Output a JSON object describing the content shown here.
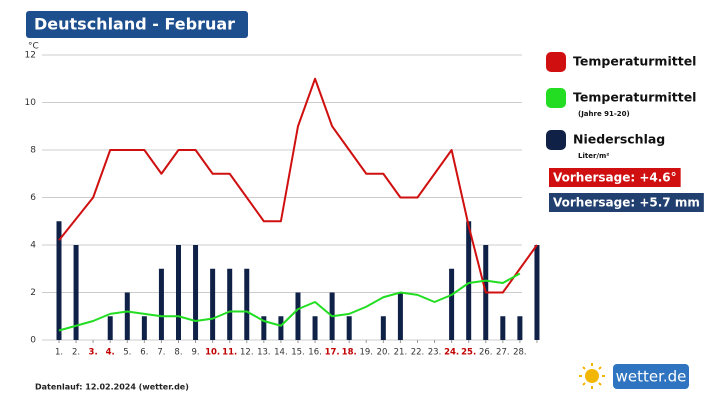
{
  "chart_data": {
    "type": "bar-line",
    "title": "Deutschland - Februar",
    "y_unit": "°C",
    "categories": [
      "1.",
      "2.",
      "3.",
      "4.",
      "5.",
      "6.",
      "7.",
      "8.",
      "9.",
      "10.",
      "11.",
      "12.",
      "13.",
      "14.",
      "15.",
      "16.",
      "17.",
      "18.",
      "19.",
      "20.",
      "21.",
      "22.",
      "23.",
      "24.",
      "25.",
      "26.",
      "27.",
      "28.",
      null
    ],
    "highlight": [
      2,
      3,
      9,
      10,
      16,
      17,
      23,
      24
    ],
    "highlight_color": "#c00000",
    "series": [
      {
        "name": "Niederschlag",
        "subtitle": "Liter/m²",
        "kind": "bar",
        "color": "#0f2147",
        "values": [
          5,
          4,
          0,
          1,
          2,
          1,
          3,
          4,
          4,
          3,
          3,
          3,
          1,
          1,
          2,
          1,
          2,
          1,
          0,
          1,
          2,
          0,
          0,
          3,
          5,
          4,
          1,
          1,
          4
        ]
      },
      {
        "name": "Temperaturmittel",
        "kind": "line",
        "color": "#d01010",
        "values": [
          4.2,
          5.1,
          6,
          8,
          8,
          8,
          7,
          8,
          8,
          7,
          7,
          6,
          5,
          5,
          9,
          11,
          9,
          8,
          7,
          7,
          6,
          6,
          7,
          8,
          4.8,
          2,
          2,
          3,
          4
        ]
      },
      {
        "name": "Temperaturmittel",
        "subtitle": "(Jahre 91-20)",
        "kind": "line",
        "color": "#22dd22",
        "values": [
          0.4,
          0.6,
          0.8,
          1.1,
          1.2,
          1.1,
          1.0,
          1.0,
          0.8,
          0.9,
          1.2,
          1.2,
          0.8,
          0.6,
          1.3,
          1.6,
          1.0,
          1.1,
          1.4,
          1.8,
          2.0,
          1.9,
          1.6,
          1.9,
          2.4,
          2.5,
          2.4,
          2.8,
          null
        ]
      }
    ],
    "legend_order": [
      1,
      2,
      0
    ],
    "ylim": [
      0,
      12
    ],
    "yticks": [
      0,
      2,
      4,
      6,
      8,
      10,
      12
    ],
    "grid": true,
    "badges": [
      {
        "text": "Vorhersage: +4.6°",
        "color": "#d01010"
      },
      {
        "text": "Vorhersage: +5.7 mm",
        "color": "#22406f"
      }
    ],
    "footer": "Datenlauf: 12.02.2024 (wetter.de)",
    "logo": "wetter.de"
  }
}
